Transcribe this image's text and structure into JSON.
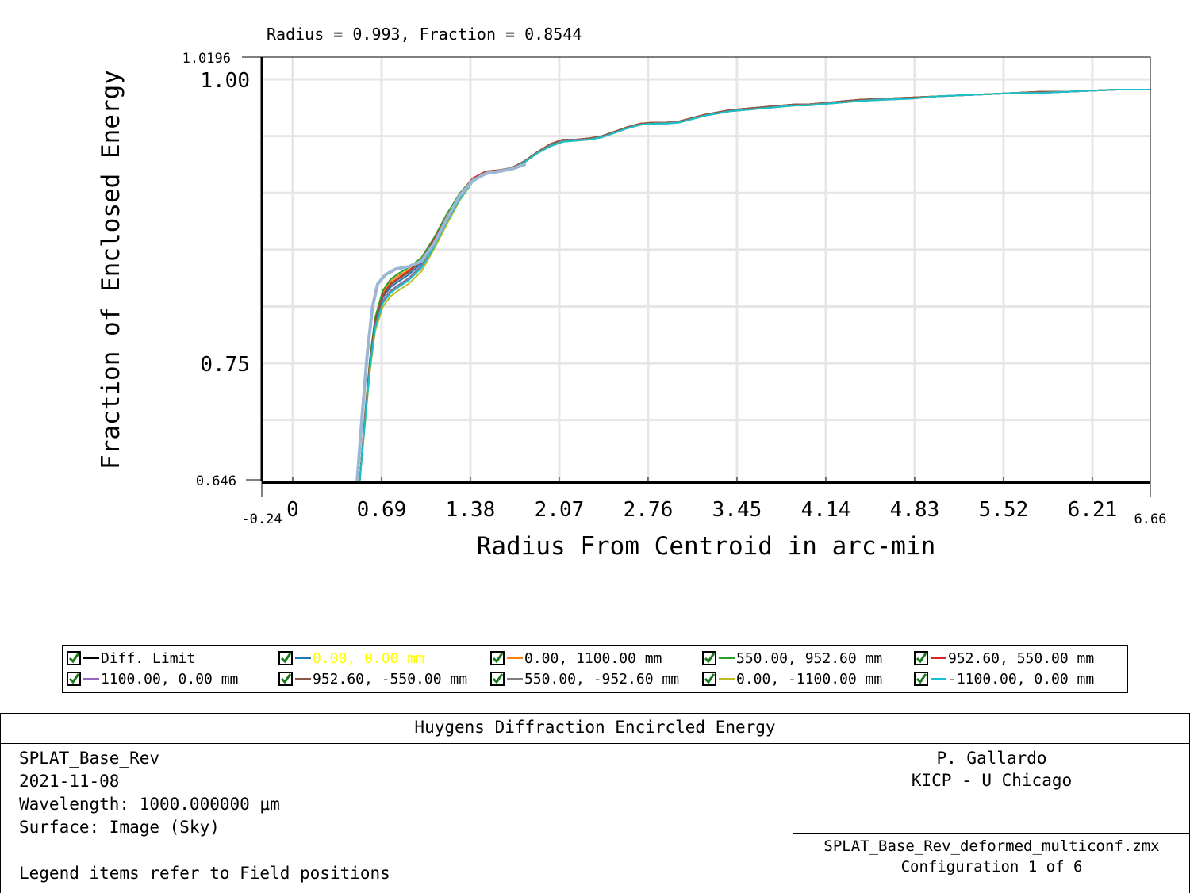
{
  "chart_data": {
    "type": "line",
    "title": "Radius = 0.993, Fraction = 0.8544",
    "xlabel": "Radius From Centroid in arc-min",
    "ylabel": "Fraction of Enclosed Energy",
    "xlim": [
      -0.24,
      6.66
    ],
    "ylim": [
      0.646,
      1.0196
    ],
    "x_ticks": [
      0,
      0.69,
      1.38,
      2.07,
      2.76,
      3.45,
      4.14,
      4.83,
      5.52,
      6.21
    ],
    "x_tick_labels": [
      "0",
      "0.69",
      "1.38",
      "2.07",
      "2.76",
      "3.45",
      "4.14",
      "4.83",
      "5.52",
      "6.21"
    ],
    "x_min_label": "-0.24",
    "x_max_label": "6.66",
    "y_tick_labels": [
      "1.00",
      "0.75"
    ],
    "y_ticks": [
      1.0,
      0.75
    ],
    "y_min_label": "0.646",
    "y_max_label": "1.0196",
    "grid": true,
    "series": [
      {
        "name": "Diff. Limit",
        "color": "#000000",
        "values": []
      },
      {
        "name": "0.00, 0.00 mm",
        "color": "#1f77b4",
        "x": [
          0.52,
          0.56,
          0.6,
          0.64,
          0.7,
          0.76,
          0.82,
          0.9,
          1.0,
          1.1,
          1.2,
          1.3,
          1.4,
          1.5,
          1.6,
          1.7,
          1.8,
          1.9,
          2.0,
          2.1,
          2.2,
          2.3,
          2.4,
          2.5,
          2.6,
          2.7,
          2.8,
          2.9,
          3.0,
          3.1,
          3.2,
          3.3,
          3.4,
          3.5,
          3.6,
          3.7,
          3.8,
          3.9,
          4.0,
          4.2,
          4.4,
          4.6,
          4.8,
          5.0,
          5.2,
          5.4,
          5.6,
          5.8,
          6.0,
          6.2,
          6.4,
          6.66
        ],
        "values": [
          0.646,
          0.7,
          0.75,
          0.785,
          0.808,
          0.817,
          0.822,
          0.828,
          0.838,
          0.856,
          0.878,
          0.898,
          0.912,
          0.918,
          0.919,
          0.921,
          0.927,
          0.935,
          0.942,
          0.946,
          0.947,
          0.947,
          0.949,
          0.953,
          0.957,
          0.96,
          0.961,
          0.962,
          0.962,
          0.965,
          0.968,
          0.97,
          0.972,
          0.973,
          0.974,
          0.975,
          0.976,
          0.977,
          0.978,
          0.979,
          0.981,
          0.983,
          0.983,
          0.985,
          0.986,
          0.987,
          0.988,
          0.988,
          0.989,
          0.99,
          0.991,
          0.991
        ]
      },
      {
        "name": "0.00, 1100.00 mm",
        "color": "#ff7f0e",
        "x": [
          0.52,
          0.56,
          0.6,
          0.64,
          0.7,
          0.76,
          0.82,
          0.9,
          1.0,
          1.1,
          1.2,
          1.3,
          1.4,
          1.5,
          1.6,
          1.7,
          1.8,
          1.9,
          2.0,
          2.1,
          2.2,
          2.3,
          2.4,
          2.5,
          2.6,
          2.7,
          2.8,
          2.9,
          3.0,
          3.1,
          3.2,
          3.3,
          3.4,
          3.5,
          3.6,
          3.7,
          3.8,
          3.9,
          4.0,
          4.2,
          4.4,
          4.6,
          4.8,
          5.0,
          5.2,
          5.4,
          5.6,
          5.8,
          6.0,
          6.2,
          6.4,
          6.66
        ],
        "values": [
          0.646,
          0.702,
          0.752,
          0.788,
          0.812,
          0.822,
          0.827,
          0.832,
          0.842,
          0.86,
          0.881,
          0.9,
          0.913,
          0.919,
          0.92,
          0.922,
          0.928,
          0.936,
          0.943,
          0.947,
          0.947,
          0.948,
          0.95,
          0.954,
          0.958,
          0.961,
          0.962,
          0.962,
          0.963,
          0.966,
          0.969,
          0.971,
          0.973,
          0.974,
          0.975,
          0.976,
          0.977,
          0.978,
          0.978,
          0.98,
          0.982,
          0.983,
          0.984,
          0.985,
          0.986,
          0.987,
          0.988,
          0.989,
          0.989,
          0.99,
          0.991,
          0.991
        ]
      },
      {
        "name": "550.00, 952.60 mm",
        "color": "#2ca02c",
        "x": [
          0.52,
          0.56,
          0.6,
          0.64,
          0.7,
          0.76,
          0.82,
          0.9,
          1.0,
          1.1,
          1.2,
          1.3,
          1.4,
          1.5,
          1.6,
          1.7,
          1.8,
          1.9,
          2.0,
          2.1,
          2.2,
          2.3,
          2.4,
          2.5,
          2.6,
          2.7,
          2.8,
          2.9,
          3.0,
          3.1,
          3.2,
          3.3,
          3.4,
          3.5,
          3.6,
          3.7,
          3.8,
          3.9,
          4.0,
          4.2,
          4.4,
          4.6,
          4.8,
          5.0,
          5.2,
          5.4,
          5.6,
          5.8,
          6.0,
          6.2,
          6.4,
          6.66
        ],
        "values": [
          0.646,
          0.703,
          0.754,
          0.79,
          0.814,
          0.824,
          0.829,
          0.834,
          0.843,
          0.861,
          0.882,
          0.9,
          0.913,
          0.919,
          0.92,
          0.922,
          0.928,
          0.936,
          0.943,
          0.947,
          0.947,
          0.948,
          0.95,
          0.954,
          0.958,
          0.961,
          0.962,
          0.962,
          0.963,
          0.966,
          0.969,
          0.971,
          0.973,
          0.974,
          0.975,
          0.976,
          0.977,
          0.978,
          0.978,
          0.98,
          0.982,
          0.983,
          0.984,
          0.985,
          0.986,
          0.987,
          0.988,
          0.989,
          0.989,
          0.99,
          0.991,
          0.991
        ]
      },
      {
        "name": "952.60, 550.00 mm",
        "color": "#d62728",
        "x": [
          0.52,
          0.56,
          0.6,
          0.64,
          0.7,
          0.76,
          0.82,
          0.9,
          1.0,
          1.1,
          1.2,
          1.3,
          1.4,
          1.5,
          1.6,
          1.7,
          1.8,
          1.9,
          2.0,
          2.1,
          2.2,
          2.3,
          2.4,
          2.5,
          2.6,
          2.7,
          2.8,
          2.9,
          3.0,
          3.1,
          3.2,
          3.3,
          3.4,
          3.5,
          3.6,
          3.7,
          3.8,
          3.9,
          4.0,
          4.2,
          4.4,
          4.6,
          4.8,
          5.0,
          5.2,
          5.4,
          5.6,
          5.8,
          6.0,
          6.2,
          6.4,
          6.66
        ],
        "values": [
          0.646,
          0.701,
          0.751,
          0.787,
          0.81,
          0.82,
          0.825,
          0.831,
          0.841,
          0.859,
          0.88,
          0.899,
          0.913,
          0.919,
          0.92,
          0.922,
          0.928,
          0.936,
          0.943,
          0.947,
          0.947,
          0.948,
          0.95,
          0.954,
          0.958,
          0.961,
          0.962,
          0.962,
          0.963,
          0.966,
          0.969,
          0.971,
          0.973,
          0.974,
          0.975,
          0.976,
          0.977,
          0.978,
          0.978,
          0.98,
          0.982,
          0.983,
          0.984,
          0.985,
          0.986,
          0.987,
          0.988,
          0.989,
          0.989,
          0.99,
          0.991,
          0.991
        ]
      },
      {
        "name": "1100.00, 0.00 mm",
        "color": "#9467bd",
        "x": [
          0.52,
          0.56,
          0.6,
          0.64,
          0.7,
          0.76,
          0.82,
          0.9,
          1.0,
          1.1,
          1.2,
          1.3,
          1.4,
          1.5,
          1.6,
          1.7,
          1.8,
          1.9,
          2.0,
          2.1,
          2.2,
          2.3,
          2.4,
          2.5,
          2.6,
          2.7,
          2.8,
          2.9,
          3.0,
          3.1,
          3.2,
          3.3,
          3.4,
          3.5,
          3.6,
          3.7,
          3.8,
          3.9,
          4.0,
          4.2,
          4.4,
          4.6,
          4.8,
          5.0,
          5.2,
          5.4,
          5.6,
          5.8,
          6.0,
          6.2,
          6.4,
          6.66
        ],
        "values": [
          0.646,
          0.699,
          0.748,
          0.783,
          0.805,
          0.814,
          0.819,
          0.825,
          0.836,
          0.855,
          0.877,
          0.897,
          0.912,
          0.918,
          0.919,
          0.921,
          0.927,
          0.935,
          0.942,
          0.946,
          0.947,
          0.947,
          0.949,
          0.953,
          0.957,
          0.96,
          0.961,
          0.962,
          0.962,
          0.965,
          0.968,
          0.97,
          0.972,
          0.973,
          0.974,
          0.975,
          0.976,
          0.977,
          0.978,
          0.979,
          0.981,
          0.983,
          0.983,
          0.985,
          0.986,
          0.987,
          0.988,
          0.988,
          0.989,
          0.99,
          0.991,
          0.991
        ]
      },
      {
        "name": "952.60, -550.00 mm",
        "color": "#8c564b",
        "x": [
          0.52,
          0.56,
          0.6,
          0.64,
          0.7,
          0.76,
          0.82,
          0.9,
          1.0,
          1.1,
          1.2,
          1.3,
          1.4,
          1.5,
          1.6,
          1.7,
          1.8,
          1.9,
          2.0,
          2.1,
          2.2,
          2.3,
          2.4,
          2.5,
          2.6,
          2.7,
          2.8,
          2.9,
          3.0,
          3.1,
          3.2,
          3.3,
          3.4,
          3.5,
          3.6,
          3.7,
          3.8,
          3.9,
          4.0,
          4.2,
          4.4,
          4.6,
          4.8,
          5.0,
          5.2,
          5.4,
          5.6,
          5.8,
          6.0,
          6.2,
          6.4,
          6.66
        ],
        "values": [
          0.646,
          0.7,
          0.75,
          0.786,
          0.809,
          0.819,
          0.824,
          0.83,
          0.84,
          0.858,
          0.879,
          0.899,
          0.912,
          0.918,
          0.92,
          0.922,
          0.928,
          0.936,
          0.943,
          0.947,
          0.947,
          0.948,
          0.95,
          0.954,
          0.958,
          0.961,
          0.962,
          0.962,
          0.963,
          0.966,
          0.969,
          0.971,
          0.973,
          0.974,
          0.975,
          0.976,
          0.977,
          0.978,
          0.978,
          0.98,
          0.982,
          0.983,
          0.984,
          0.985,
          0.986,
          0.987,
          0.988,
          0.989,
          0.989,
          0.99,
          0.991,
          0.991
        ]
      },
      {
        "name": "550.00, -952.60 mm",
        "color": "#7f7f7f",
        "x": [
          0.52,
          0.56,
          0.6,
          0.64,
          0.7,
          0.76,
          0.82,
          0.9,
          1.0,
          1.1,
          1.2,
          1.3,
          1.4,
          1.5,
          1.6,
          1.7,
          1.8,
          1.9,
          2.0,
          2.1,
          2.2,
          2.3,
          2.4,
          2.5,
          2.6,
          2.7,
          2.8,
          2.9,
          3.0,
          3.1,
          3.2,
          3.3,
          3.4,
          3.5,
          3.6,
          3.7,
          3.8,
          3.9,
          4.0,
          4.2,
          4.4,
          4.6,
          4.8,
          5.0,
          5.2,
          5.4,
          5.6,
          5.8,
          6.0,
          6.2,
          6.4,
          6.66
        ],
        "values": [
          0.646,
          0.698,
          0.747,
          0.782,
          0.804,
          0.813,
          0.818,
          0.824,
          0.835,
          0.854,
          0.876,
          0.896,
          0.911,
          0.918,
          0.919,
          0.921,
          0.927,
          0.935,
          0.942,
          0.946,
          0.947,
          0.947,
          0.949,
          0.953,
          0.957,
          0.96,
          0.961,
          0.962,
          0.962,
          0.965,
          0.968,
          0.97,
          0.972,
          0.973,
          0.974,
          0.975,
          0.976,
          0.977,
          0.978,
          0.979,
          0.981,
          0.983,
          0.983,
          0.985,
          0.986,
          0.987,
          0.988,
          0.988,
          0.989,
          0.99,
          0.991,
          0.991
        ]
      },
      {
        "name": "0.00, -1100.00 mm",
        "color": "#bcbd22",
        "x": [
          0.52,
          0.56,
          0.6,
          0.64,
          0.7,
          0.76,
          0.82,
          0.9,
          1.0,
          1.1,
          1.2,
          1.3,
          1.4,
          1.5,
          1.6,
          1.7,
          1.8,
          1.9,
          2.0,
          2.1,
          2.2,
          2.3,
          2.4,
          2.5,
          2.6,
          2.7,
          2.8,
          2.9,
          3.0,
          3.1,
          3.2,
          3.3,
          3.4,
          3.5,
          3.6,
          3.7,
          3.8,
          3.9,
          4.0,
          4.2,
          4.4,
          4.6,
          4.8,
          5.0,
          5.2,
          5.4,
          5.6,
          5.8,
          6.0,
          6.2,
          6.4,
          6.66
        ],
        "values": [
          0.646,
          0.695,
          0.743,
          0.778,
          0.8,
          0.809,
          0.814,
          0.82,
          0.831,
          0.851,
          0.873,
          0.894,
          0.91,
          0.917,
          0.919,
          0.921,
          0.927,
          0.935,
          0.941,
          0.945,
          0.946,
          0.947,
          0.949,
          0.953,
          0.957,
          0.96,
          0.961,
          0.961,
          0.962,
          0.965,
          0.968,
          0.97,
          0.972,
          0.973,
          0.974,
          0.975,
          0.976,
          0.977,
          0.977,
          0.979,
          0.981,
          0.982,
          0.983,
          0.985,
          0.986,
          0.987,
          0.988,
          0.988,
          0.989,
          0.99,
          0.991,
          0.991
        ]
      },
      {
        "name": "-1100.00, 0.00 mm",
        "color": "#17becf",
        "x": [
          0.52,
          0.56,
          0.6,
          0.64,
          0.7,
          0.76,
          0.82,
          0.9,
          1.0,
          1.1,
          1.2,
          1.3,
          1.4,
          1.5,
          1.6,
          1.7,
          1.8,
          1.9,
          2.0,
          2.1,
          2.2,
          2.3,
          2.4,
          2.5,
          2.6,
          2.7,
          2.8,
          2.9,
          3.0,
          3.1,
          3.2,
          3.3,
          3.4,
          3.5,
          3.6,
          3.7,
          3.8,
          3.9,
          4.0,
          4.2,
          4.4,
          4.6,
          4.8,
          5.0,
          5.2,
          5.4,
          5.6,
          5.8,
          6.0,
          6.2,
          6.4,
          6.66
        ],
        "values": [
          0.646,
          0.697,
          0.746,
          0.781,
          0.803,
          0.812,
          0.817,
          0.823,
          0.834,
          0.853,
          0.875,
          0.895,
          0.91,
          0.917,
          0.919,
          0.921,
          0.927,
          0.935,
          0.941,
          0.945,
          0.946,
          0.947,
          0.949,
          0.953,
          0.957,
          0.96,
          0.961,
          0.961,
          0.962,
          0.965,
          0.968,
          0.97,
          0.972,
          0.973,
          0.974,
          0.975,
          0.976,
          0.977,
          0.977,
          0.979,
          0.981,
          0.982,
          0.983,
          0.985,
          0.986,
          0.987,
          0.988,
          0.988,
          0.989,
          0.99,
          0.991,
          0.991
        ]
      },
      {
        "name": "",
        "color": "#9bb7d4",
        "x": [
          0.5,
          0.54,
          0.58,
          0.62,
          0.66,
          0.72,
          0.8,
          0.9,
          1.0,
          1.1,
          1.2,
          1.3,
          1.4,
          1.5,
          1.6,
          1.7,
          1.8
        ],
        "values": [
          0.646,
          0.705,
          0.76,
          0.8,
          0.82,
          0.828,
          0.833,
          0.835,
          0.84,
          0.856,
          0.878,
          0.898,
          0.911,
          0.917,
          0.919,
          0.921,
          0.925
        ]
      }
    ],
    "legend": [
      {
        "label": "Diff. Limit",
        "color": "#000000",
        "label_color": "#000000"
      },
      {
        "label": "0.00, 0.00 mm",
        "color": "#1f77b4",
        "label_color": "#ffff00"
      },
      {
        "label": "0.00, 1100.00 mm",
        "color": "#ff7f0e",
        "label_color": "#000000"
      },
      {
        "label": "550.00, 952.60 mm",
        "color": "#2ca02c",
        "label_color": "#000000"
      },
      {
        "label": "952.60, 550.00 mm",
        "color": "#d62728",
        "label_color": "#000000"
      },
      {
        "label": "1100.00, 0.00 mm",
        "color": "#9467bd",
        "label_color": "#000000"
      },
      {
        "label": "952.60, -550.00 mm",
        "color": "#8c564b",
        "label_color": "#000000"
      },
      {
        "label": "550.00, -952.60 mm",
        "color": "#7f7f7f",
        "label_color": "#000000"
      },
      {
        "label": "0.00, -1100.00 mm",
        "color": "#bcbd22",
        "label_color": "#000000"
      },
      {
        "label": "-1100.00, 0.00 mm",
        "color": "#17becf",
        "label_color": "#000000"
      }
    ],
    "legend_placement": "bottom"
  },
  "footer": {
    "title": "Huygens Diffraction Encircled Energy",
    "left_lines": [
      "SPLAT_Base_Rev",
      "2021-11-08",
      "Wavelength: 1000.000000 µm",
      "Surface: Image (Sky)",
      "",
      "Legend items refer to Field positions"
    ],
    "author": "P. Gallardo",
    "institution": "KICP - U Chicago",
    "file_name": "SPLAT_Base_Rev_deformed_multiconf.zmx",
    "configuration": "Configuration 1 of 6"
  },
  "colors": {
    "grid": "#e6e6e6",
    "check": "#1a7a1a"
  }
}
